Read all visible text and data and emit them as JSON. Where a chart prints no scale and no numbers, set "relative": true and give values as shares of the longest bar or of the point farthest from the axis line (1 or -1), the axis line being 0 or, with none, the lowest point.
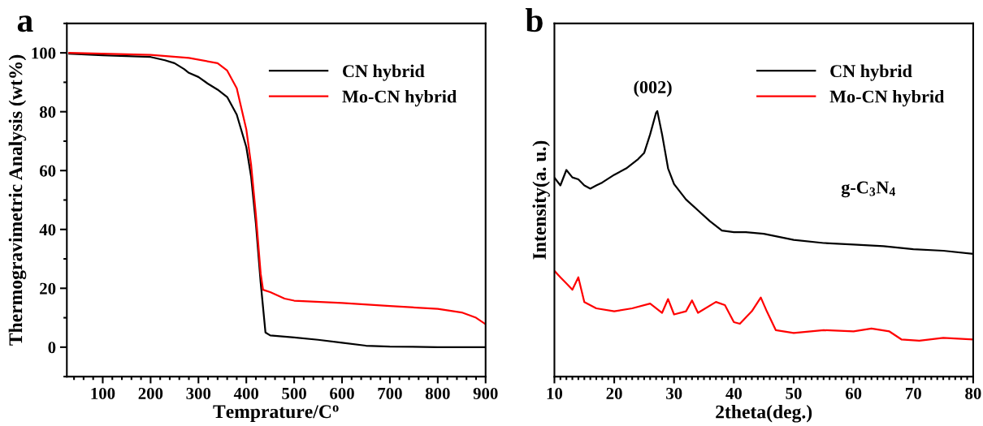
{
  "chart_data": [
    {
      "type": "line",
      "title": "a",
      "xlabel": "Temprature/C$^{o}$",
      "ylabel": "Thermogravimetric Analysis (wt%)",
      "xlim": [
        25,
        900
      ],
      "xticks": [
        100,
        200,
        300,
        400,
        500,
        600,
        700,
        800,
        900
      ],
      "ylim": [
        -10,
        110
      ],
      "yticks": [
        0,
        20,
        40,
        60,
        80,
        100
      ],
      "legend": "top right",
      "grid": false,
      "series": [
        {
          "name": "CN hybrid",
          "color": "#000000",
          "x": [
            30,
            100,
            200,
            230,
            250,
            270,
            280,
            300,
            320,
            340,
            360,
            380,
            400,
            410,
            420,
            430,
            440,
            450,
            500,
            550,
            600,
            650,
            700,
            800,
            900
          ],
          "values": [
            99.7,
            99.2,
            98.6,
            97.5,
            96.5,
            94.5,
            93.2,
            91.8,
            89.5,
            87.5,
            85,
            79,
            68,
            58,
            42,
            22,
            5,
            4,
            3.3,
            2.5,
            1.5,
            0.5,
            0.2,
            0,
            0
          ]
        },
        {
          "name": "Mo-CN hybrid",
          "color": "#ff0000",
          "x": [
            30,
            200,
            280,
            340,
            360,
            380,
            400,
            410,
            420,
            430,
            435,
            450,
            480,
            500,
            600,
            700,
            800,
            850,
            880,
            900
          ],
          "values": [
            100,
            99.3,
            98.3,
            96.5,
            94,
            88,
            74,
            62,
            45,
            25,
            19.5,
            18.7,
            16.5,
            15.8,
            15,
            14,
            13,
            11.8,
            10,
            7.8
          ]
        }
      ]
    },
    {
      "type": "line",
      "title": "b",
      "xlabel": "2theta(deg.)",
      "ylabel": "Intensity(a. u.)",
      "relative": true,
      "xlim": [
        10,
        80
      ],
      "xticks": [
        10,
        20,
        30,
        40,
        50,
        60,
        70,
        80
      ],
      "legend": "top right",
      "grid": false,
      "annotations": [
        "(002)",
        "g-C$_{3}$N$_{4}$"
      ],
      "series": [
        {
          "name": "CN hybrid",
          "color": "#000000",
          "x": [
            10,
            11,
            12,
            13,
            14,
            15,
            16,
            17,
            18,
            20,
            22,
            24,
            25,
            26,
            27,
            27.2,
            28,
            29,
            30,
            32,
            34,
            36,
            38,
            40,
            42,
            45,
            50,
            55,
            60,
            65,
            70,
            75,
            80
          ],
          "values": [
            0.749,
            0.72,
            0.778,
            0.75,
            0.743,
            0.72,
            0.708,
            0.72,
            0.731,
            0.76,
            0.784,
            0.819,
            0.842,
            0.912,
            0.994,
            1.0,
            0.912,
            0.784,
            0.725,
            0.667,
            0.626,
            0.585,
            0.55,
            0.544,
            0.544,
            0.538,
            0.515,
            0.503,
            0.497,
            0.491,
            0.48,
            0.474,
            0.462
          ]
        },
        {
          "name": "Mo-CN hybrid",
          "color": "#ff0000",
          "x": [
            10,
            11,
            12,
            13,
            14,
            14.5,
            15,
            17,
            20,
            23,
            26,
            28,
            29,
            30,
            32,
            33,
            34,
            37,
            38.5,
            40,
            41,
            43,
            44.5,
            45.5,
            47,
            50,
            55,
            60,
            63,
            66,
            68,
            71,
            75,
            80
          ],
          "values": [
            0.398,
            0.374,
            0.351,
            0.327,
            0.374,
            0.327,
            0.281,
            0.257,
            0.246,
            0.257,
            0.275,
            0.24,
            0.292,
            0.234,
            0.246,
            0.287,
            0.24,
            0.281,
            0.269,
            0.205,
            0.199,
            0.246,
            0.298,
            0.246,
            0.175,
            0.164,
            0.175,
            0.17,
            0.181,
            0.17,
            0.14,
            0.135,
            0.146,
            0.14
          ]
        }
      ]
    }
  ]
}
